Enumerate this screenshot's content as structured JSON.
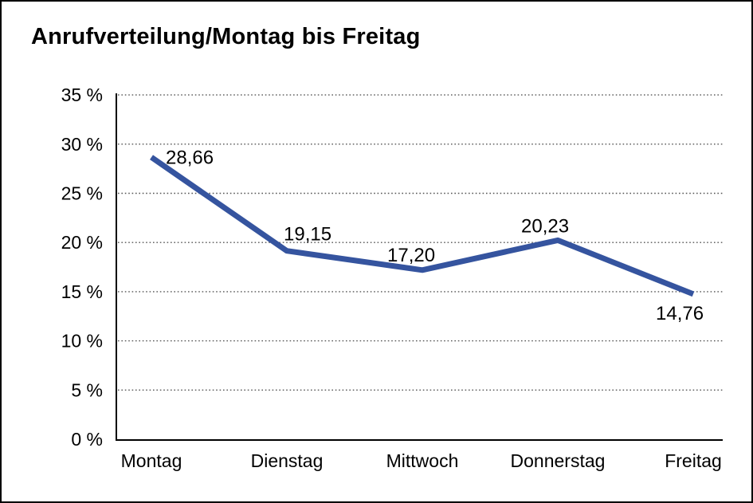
{
  "chart_data": {
    "type": "line",
    "title": "Anrufverteilung/Montag bis Freitag",
    "categories": [
      "Montag",
      "Dienstag",
      "Mittwoch",
      "Donnerstag",
      "Freitag"
    ],
    "series": [
      {
        "name": "Anrufverteilung",
        "values": [
          28.66,
          19.15,
          17.2,
          20.23,
          14.76
        ],
        "value_labels": [
          "28,66",
          "19,15",
          "17,20",
          "20,23",
          "14,76"
        ]
      }
    ],
    "xlabel": "",
    "ylabel": "",
    "ylim": [
      0,
      35
    ],
    "ytick_step": 5,
    "ytick_labels": [
      "0 %",
      "5 %",
      "10 %",
      "15 %",
      "20 %",
      "25 %",
      "30 %",
      "35 %"
    ],
    "grid": "horizontal-dotted",
    "legend": "none",
    "colors": {
      "line": "#35549f",
      "gridline": "#555555",
      "axis": "#000000",
      "background": "#ffffff",
      "frame_border": "#000000",
      "text": "#000000"
    }
  }
}
